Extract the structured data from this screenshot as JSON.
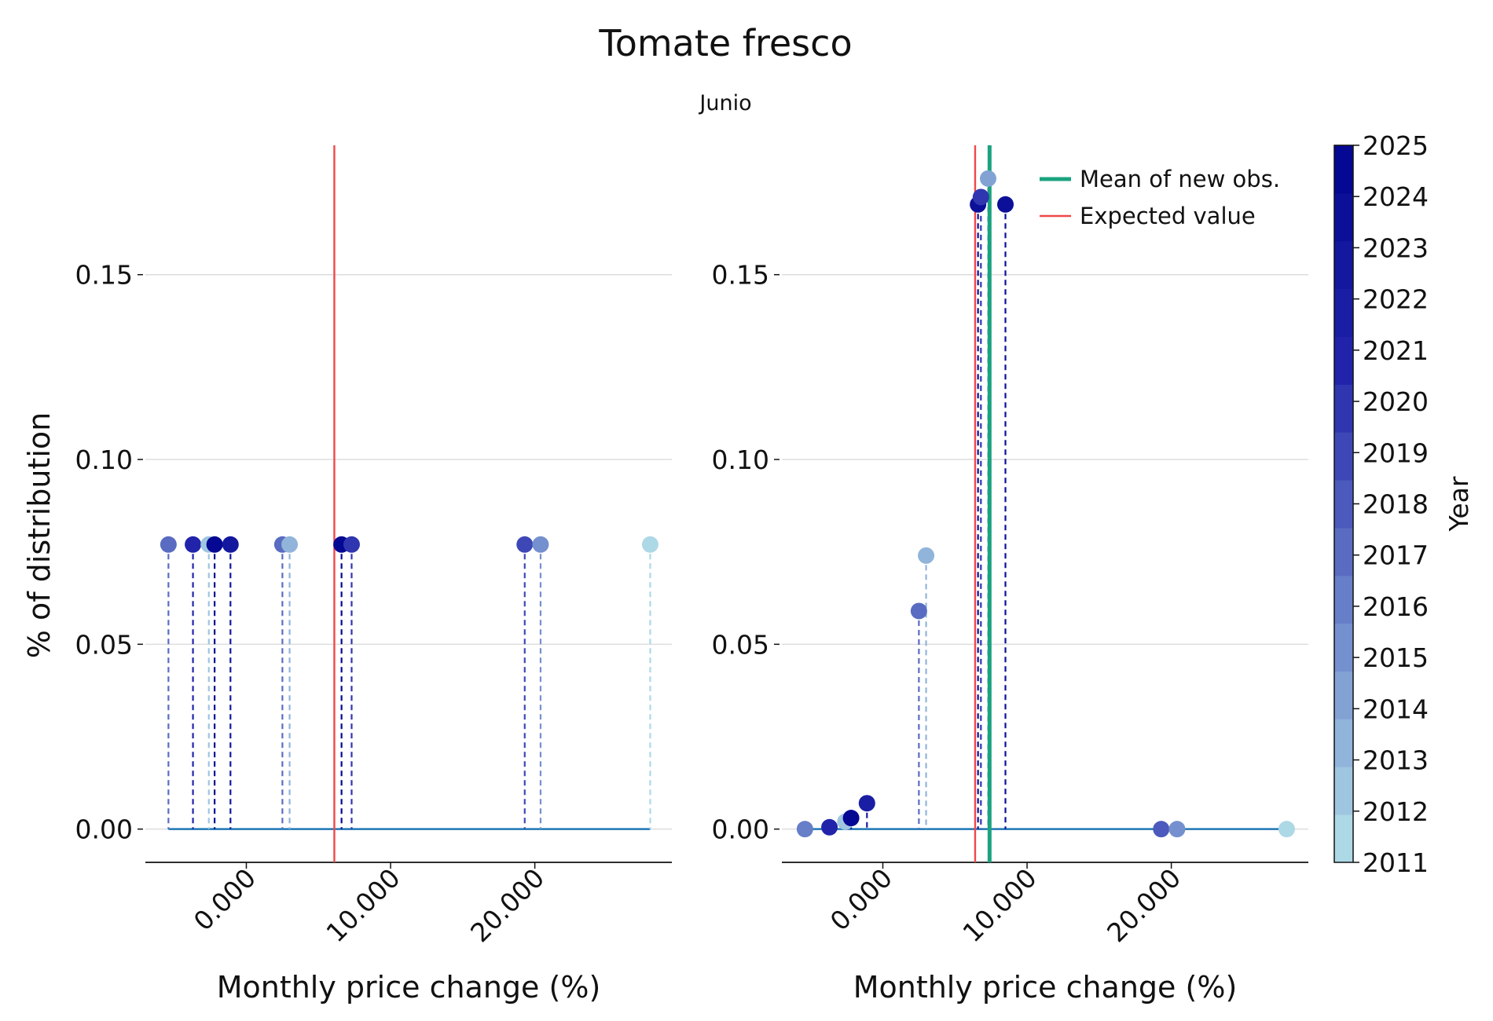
{
  "chart_data": {
    "type": "scatter",
    "title": "Tomate fresco",
    "subtitle": "Junio",
    "xlabel": "Monthly price change (%)",
    "ylabel": "% of distribution",
    "xlim": [
      -0.07,
      0.295
    ],
    "ylim": [
      -0.009,
      0.185
    ],
    "xticks": [
      0.0,
      0.1,
      0.2
    ],
    "xtick_labels": [
      "0.000",
      "10.000",
      "20.000"
    ],
    "yticks": [
      0.0,
      0.05,
      0.1,
      0.15
    ],
    "ytick_labels": [
      "0.00",
      "0.05",
      "0.10",
      "0.15"
    ],
    "grid": "horizontal",
    "colorbar": {
      "label": "Year",
      "years": [
        2011,
        2012,
        2013,
        2014,
        2015,
        2016,
        2017,
        2018,
        2019,
        2020,
        2021,
        2022,
        2023,
        2024,
        2025
      ],
      "colors": [
        "#add8e6",
        "#9fc6e0",
        "#91b4da",
        "#83a2d4",
        "#7590ce",
        "#677ec8",
        "#596cc2",
        "#4b5abc",
        "#3d48b6",
        "#2f36b0",
        "#2124aa",
        "#1a1ea4",
        "#13189e",
        "#0c1098",
        "#050892"
      ]
    },
    "baseline_color": "#1f77b4",
    "panels": [
      {
        "expected_value": 0.061,
        "points": [
          {
            "x": -0.054,
            "y": 0.077,
            "year": 2017
          },
          {
            "x": -0.037,
            "y": 0.077,
            "year": 2021
          },
          {
            "x": -0.026,
            "y": 0.077,
            "year": 2012
          },
          {
            "x": -0.022,
            "y": 0.077,
            "year": 2025
          },
          {
            "x": -0.011,
            "y": 0.077,
            "year": 2023
          },
          {
            "x": 0.025,
            "y": 0.077,
            "year": 2017
          },
          {
            "x": 0.03,
            "y": 0.077,
            "year": 2013
          },
          {
            "x": 0.066,
            "y": 0.077,
            "year": 2025
          },
          {
            "x": 0.073,
            "y": 0.077,
            "year": 2020
          },
          {
            "x": 0.193,
            "y": 0.077,
            "year": 2019
          },
          {
            "x": 0.204,
            "y": 0.077,
            "year": 2015
          },
          {
            "x": 0.28,
            "y": 0.077,
            "year": 2011
          }
        ]
      },
      {
        "expected_value": 0.064,
        "mean_new_obs": 0.074,
        "legend": [
          "Mean of new obs.",
          "Expected value"
        ],
        "points": [
          {
            "x": -0.054,
            "y": 0.0,
            "year": 2016
          },
          {
            "x": -0.037,
            "y": 0.0005,
            "year": 2021
          },
          {
            "x": -0.026,
            "y": 0.002,
            "year": 2012
          },
          {
            "x": -0.022,
            "y": 0.003,
            "year": 2025
          },
          {
            "x": -0.011,
            "y": 0.007,
            "year": 2022
          },
          {
            "x": 0.025,
            "y": 0.059,
            "year": 2017
          },
          {
            "x": 0.03,
            "y": 0.074,
            "year": 2013
          },
          {
            "x": 0.066,
            "y": 0.169,
            "year": 2024
          },
          {
            "x": 0.068,
            "y": 0.171,
            "year": 2020
          },
          {
            "x": 0.073,
            "y": 0.176,
            "year": 2014
          },
          {
            "x": 0.085,
            "y": 0.169,
            "year": 2024
          },
          {
            "x": 0.193,
            "y": 0.0,
            "year": 2018
          },
          {
            "x": 0.204,
            "y": 0.0,
            "year": 2015
          },
          {
            "x": 0.28,
            "y": 0.0,
            "year": 2011
          }
        ]
      }
    ]
  }
}
